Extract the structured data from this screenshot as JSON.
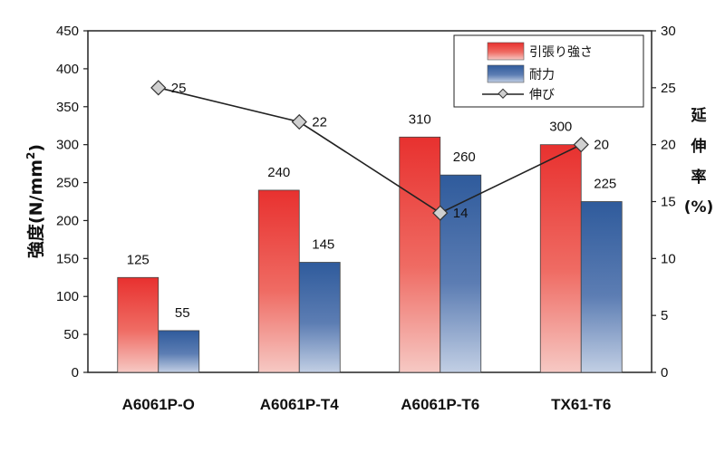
{
  "chart_data": {
    "type": "bar",
    "categories": [
      "A6061P-O",
      "A6061P-T4",
      "A6061P-T6",
      "TX61-T6"
    ],
    "series": [
      {
        "name": "引張り強さ",
        "type": "bar",
        "axis": "left",
        "values": [
          125,
          240,
          310,
          300
        ]
      },
      {
        "name": "耐力",
        "type": "bar",
        "axis": "left",
        "values": [
          55,
          145,
          260,
          225
        ]
      },
      {
        "name": "伸び",
        "type": "line",
        "axis": "right",
        "values": [
          25,
          22,
          14,
          20
        ]
      }
    ],
    "ylabel": "強度(N/mm²)",
    "ylabel_parts": {
      "main": "強度(N/mm",
      "sup": "2",
      "end": ")"
    },
    "y2label_lines": [
      "延",
      "伸",
      "率",
      "(%)"
    ],
    "ylim": [
      0,
      450
    ],
    "y2lim": [
      0,
      30
    ],
    "yticks": [
      0,
      50,
      100,
      150,
      200,
      250,
      300,
      350,
      400,
      450
    ],
    "y2ticks": [
      0,
      5,
      10,
      15,
      20,
      25,
      30
    ],
    "legend_position": "top-right",
    "grid": false,
    "colors": {
      "tensile_top": "#e8312f",
      "tensile_bottom": "#f6c9c4",
      "proof_top": "#2f5b9c",
      "proof_bottom": "#c2cfe4",
      "line": "#222222",
      "marker_fill": "#d0d0d0"
    }
  }
}
